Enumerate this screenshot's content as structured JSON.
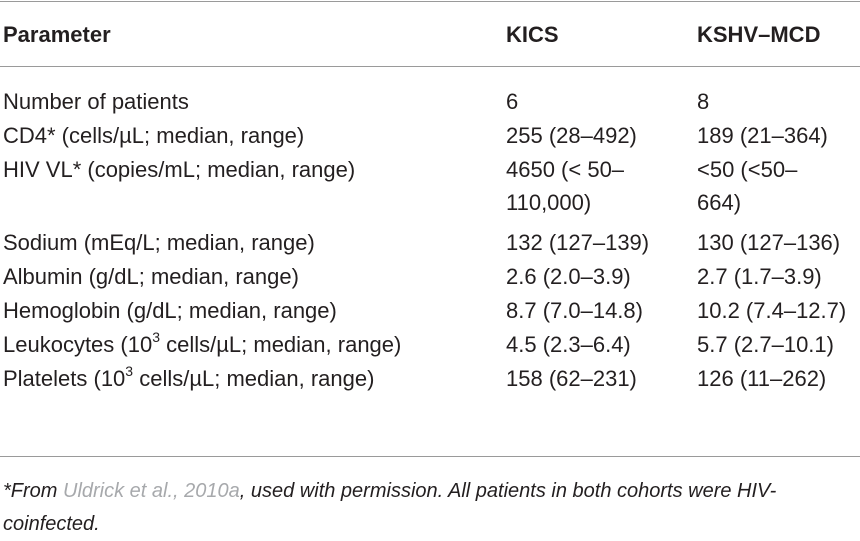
{
  "table": {
    "headers": [
      "Parameter",
      "KICS",
      "KSHV–MCD"
    ],
    "rows": [
      {
        "param": "Number of patients",
        "param_sup": "",
        "param_rest": "",
        "kics": "6",
        "kics_line2": "",
        "mcd": "8",
        "mcd_line2": ""
      },
      {
        "param": "CD4* (cells/µL; median, range)",
        "param_sup": "",
        "param_rest": "",
        "kics": "255 (28–492)",
        "kics_line2": "",
        "mcd": "189 (21–364)",
        "mcd_line2": ""
      },
      {
        "param": "HIV VL* (copies/mL; median, range)",
        "param_sup": "",
        "param_rest": "",
        "kics": "4650 (< 50–",
        "kics_line2": "110,000)",
        "mcd": "<50 (<50–",
        "mcd_line2": "664)"
      },
      {
        "param": "Sodium (mEq/L; median, range)",
        "param_sup": "",
        "param_rest": "",
        "kics": "132 (127–139)",
        "kics_line2": "",
        "mcd": "130 (127–136)",
        "mcd_line2": ""
      },
      {
        "param": "Albumin (g/dL; median, range)",
        "param_sup": "",
        "param_rest": "",
        "kics": "2.6 (2.0–3.9)",
        "kics_line2": "",
        "mcd": "2.7 (1.7–3.9)",
        "mcd_line2": ""
      },
      {
        "param": "Hemoglobin (g/dL; median, range)",
        "param_sup": "",
        "param_rest": "",
        "kics": "8.7 (7.0–14.8)",
        "kics_line2": "",
        "mcd": "10.2 (7.4–12.7)",
        "mcd_line2": ""
      },
      {
        "param": "Leukocytes (10",
        "param_sup": "3",
        "param_rest": " cells/µL; median, range)",
        "kics": "4.5 (2.3–6.4)",
        "kics_line2": "",
        "mcd": "5.7 (2.7–10.1)",
        "mcd_line2": ""
      },
      {
        "param": "Platelets (10",
        "param_sup": "3",
        "param_rest": " cells/µL; median, range)",
        "kics": "158 (62–231)",
        "kics_line2": "",
        "mcd": "126 (11–262)",
        "mcd_line2": ""
      }
    ]
  },
  "footnote": {
    "prefix": "*From ",
    "link_text": "Uldrick et al., 2010a",
    "suffix": ", used with permission. All patients in both cohorts were HIV-coinfected."
  },
  "colors": {
    "text": "#231f20",
    "rule": "#9a9a9a",
    "link": "#a7a9ac"
  }
}
